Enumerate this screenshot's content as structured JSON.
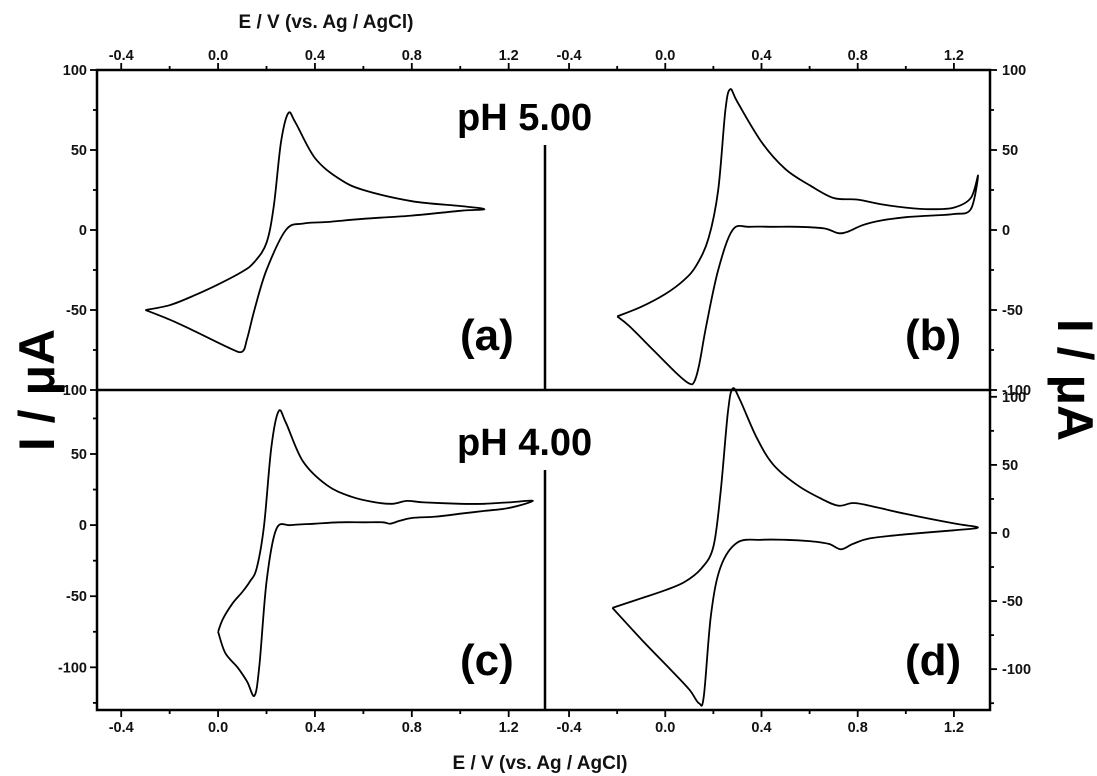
{
  "labels": {
    "x_title_top": "E / V (vs. Ag / AgCl)",
    "x_title_bottom": "E / V (vs. Ag / AgCl)",
    "y_title_left": "I / μA",
    "y_title_right": "I / μA",
    "ph_top": "pH 5.00",
    "ph_bottom": "pH 4.00"
  },
  "chart_data": [
    {
      "type": "line",
      "panel": "(a)",
      "condition": "pH 5.00",
      "xlabel": "E / V (vs. Ag / AgCl)",
      "ylabel": "I / μA",
      "xlim": [
        -0.5,
        1.35
      ],
      "ylim": [
        -100,
        100
      ],
      "x_ticks": [
        "-0.4",
        "0.0",
        "0.4",
        "0.8",
        "1.2"
      ],
      "y_ticks": [
        "100",
        "50",
        "0",
        "-50",
        "-100"
      ],
      "series": [
        {
          "points": [
            [
              -0.3,
              -50
            ],
            [
              -0.2,
              -47
            ],
            [
              -0.1,
              -41
            ],
            [
              0.0,
              -34
            ],
            [
              0.1,
              -26
            ],
            [
              0.15,
              -20
            ],
            [
              0.2,
              -8
            ],
            [
              0.23,
              15
            ],
            [
              0.26,
              55
            ],
            [
              0.29,
              73
            ],
            [
              0.32,
              67
            ],
            [
              0.4,
              45
            ],
            [
              0.5,
              32
            ],
            [
              0.6,
              25
            ],
            [
              0.8,
              18
            ],
            [
              1.0,
              15
            ],
            [
              1.1,
              13
            ],
            [
              1.0,
              12
            ],
            [
              0.8,
              9
            ],
            [
              0.6,
              7
            ],
            [
              0.45,
              5
            ],
            [
              0.35,
              4
            ],
            [
              0.28,
              0
            ],
            [
              0.2,
              -25
            ],
            [
              0.15,
              -50
            ],
            [
              0.12,
              -68
            ],
            [
              0.1,
              -76
            ],
            [
              0.05,
              -74
            ],
            [
              -0.1,
              -63
            ],
            [
              -0.2,
              -56
            ],
            [
              -0.3,
              -50
            ]
          ]
        }
      ]
    },
    {
      "type": "line",
      "panel": "(b)",
      "condition": "pH 5.00",
      "xlabel": "E / V (vs. Ag / AgCl)",
      "ylabel": "I / μA",
      "xlim": [
        -0.5,
        1.35
      ],
      "ylim": [
        -100,
        100
      ],
      "x_ticks": [
        "-0.4",
        "0.0",
        "0.4",
        "0.8",
        "1.2"
      ],
      "y_ticks": [
        "100",
        "50",
        "0",
        "-50",
        "-100"
      ],
      "series": [
        {
          "points": [
            [
              -0.2,
              -54
            ],
            [
              -0.1,
              -48
            ],
            [
              0.0,
              -40
            ],
            [
              0.08,
              -31
            ],
            [
              0.13,
              -22
            ],
            [
              0.18,
              -5
            ],
            [
              0.22,
              25
            ],
            [
              0.25,
              75
            ],
            [
              0.27,
              88
            ],
            [
              0.3,
              80
            ],
            [
              0.4,
              55
            ],
            [
              0.5,
              38
            ],
            [
              0.6,
              28
            ],
            [
              0.7,
              20
            ],
            [
              0.8,
              19
            ],
            [
              0.9,
              16
            ],
            [
              1.0,
              14
            ],
            [
              1.1,
              13
            ],
            [
              1.2,
              14
            ],
            [
              1.27,
              20
            ],
            [
              1.3,
              34
            ],
            [
              1.27,
              13
            ],
            [
              1.2,
              10
            ],
            [
              1.1,
              9
            ],
            [
              1.0,
              8
            ],
            [
              0.9,
              6
            ],
            [
              0.82,
              3
            ],
            [
              0.76,
              -1
            ],
            [
              0.72,
              -2
            ],
            [
              0.66,
              1
            ],
            [
              0.55,
              2
            ],
            [
              0.45,
              2
            ],
            [
              0.35,
              2
            ],
            [
              0.28,
              0
            ],
            [
              0.22,
              -25
            ],
            [
              0.17,
              -60
            ],
            [
              0.14,
              -85
            ],
            [
              0.12,
              -95
            ],
            [
              0.1,
              -96
            ],
            [
              0.05,
              -90
            ],
            [
              -0.05,
              -75
            ],
            [
              -0.15,
              -60
            ],
            [
              -0.2,
              -54
            ]
          ]
        }
      ]
    },
    {
      "type": "line",
      "panel": "(c)",
      "condition": "pH 4.00",
      "xlabel": "E / V (vs. Ag / AgCl)",
      "ylabel": "I / μA",
      "xlim": [
        -0.5,
        1.35
      ],
      "ylim": [
        -130,
        95
      ],
      "x_ticks": [
        "-0.4",
        "0.0",
        "0.4",
        "0.8",
        "1.2"
      ],
      "y_ticks": [
        "50",
        "0",
        "-50",
        "-100"
      ],
      "series": [
        {
          "points": [
            [
              0.0,
              -75
            ],
            [
              0.02,
              -66
            ],
            [
              0.06,
              -55
            ],
            [
              0.1,
              -47
            ],
            [
              0.13,
              -40
            ],
            [
              0.16,
              -30
            ],
            [
              0.19,
              0
            ],
            [
              0.22,
              55
            ],
            [
              0.25,
              80
            ],
            [
              0.28,
              72
            ],
            [
              0.35,
              45
            ],
            [
              0.45,
              28
            ],
            [
              0.55,
              20
            ],
            [
              0.65,
              16
            ],
            [
              0.72,
              15
            ],
            [
              0.78,
              17
            ],
            [
              0.85,
              16
            ],
            [
              1.0,
              15
            ],
            [
              1.1,
              15
            ],
            [
              1.2,
              16
            ],
            [
              1.3,
              17
            ],
            [
              1.2,
              12
            ],
            [
              1.1,
              10
            ],
            [
              1.0,
              8
            ],
            [
              0.9,
              6
            ],
            [
              0.8,
              5
            ],
            [
              0.75,
              3
            ],
            [
              0.71,
              1
            ],
            [
              0.68,
              2
            ],
            [
              0.6,
              2
            ],
            [
              0.5,
              2
            ],
            [
              0.4,
              1
            ],
            [
              0.3,
              0
            ],
            [
              0.24,
              -3
            ],
            [
              0.2,
              -40
            ],
            [
              0.17,
              -100
            ],
            [
              0.15,
              -120
            ],
            [
              0.12,
              -110
            ],
            [
              0.08,
              -100
            ],
            [
              0.03,
              -90
            ],
            [
              0.0,
              -75
            ]
          ]
        }
      ]
    },
    {
      "type": "line",
      "panel": "(d)",
      "condition": "pH 4.00",
      "xlabel": "E / V (vs. Ag / AgCl)",
      "ylabel": "I / μA",
      "xlim": [
        -0.5,
        1.35
      ],
      "ylim": [
        -130,
        105
      ],
      "x_ticks": [
        "-0.4",
        "0.0",
        "0.4",
        "0.8",
        "1.2"
      ],
      "y_ticks": [
        "100",
        "50",
        "0",
        "-50",
        "-100"
      ],
      "series": [
        {
          "points": [
            [
              -0.22,
              -55
            ],
            [
              -0.1,
              -48
            ],
            [
              0.0,
              -42
            ],
            [
              0.08,
              -36
            ],
            [
              0.15,
              -26
            ],
            [
              0.2,
              -10
            ],
            [
              0.23,
              30
            ],
            [
              0.26,
              88
            ],
            [
              0.28,
              106
            ],
            [
              0.31,
              98
            ],
            [
              0.38,
              70
            ],
            [
              0.45,
              50
            ],
            [
              0.55,
              35
            ],
            [
              0.65,
              25
            ],
            [
              0.72,
              20
            ],
            [
              0.78,
              22
            ],
            [
              0.85,
              20
            ],
            [
              1.0,
              14
            ],
            [
              1.2,
              7
            ],
            [
              1.3,
              4
            ],
            [
              1.2,
              2
            ],
            [
              1.0,
              -1
            ],
            [
              0.85,
              -4
            ],
            [
              0.78,
              -8
            ],
            [
              0.73,
              -12
            ],
            [
              0.68,
              -8
            ],
            [
              0.6,
              -6
            ],
            [
              0.5,
              -5
            ],
            [
              0.4,
              -5
            ],
            [
              0.3,
              -7
            ],
            [
              0.23,
              -25
            ],
            [
              0.19,
              -60
            ],
            [
              0.16,
              -120
            ],
            [
              0.14,
              -125
            ],
            [
              0.1,
              -115
            ],
            [
              0.02,
              -100
            ],
            [
              -0.1,
              -78
            ],
            [
              -0.22,
              -55
            ]
          ]
        }
      ]
    }
  ]
}
